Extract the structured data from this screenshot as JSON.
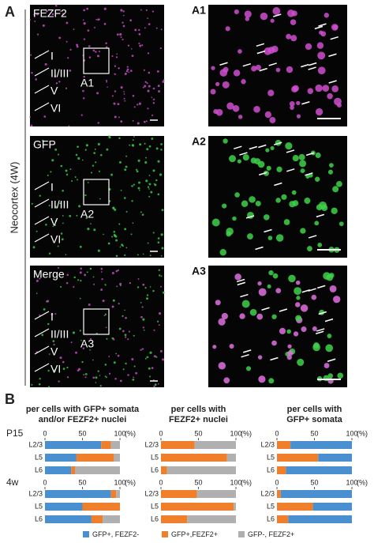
{
  "panels": {
    "A": {
      "label": "A",
      "side_label": "Neocortex (4W)",
      "images": [
        {
          "label": "FEZF2",
          "inset": "A1"
        },
        {
          "label": "GFP",
          "inset": "A2"
        },
        {
          "label": "Merge",
          "inset": "A3"
        }
      ],
      "layers": [
        "I",
        "II/III",
        "V",
        "VI"
      ]
    },
    "B": {
      "label": "B",
      "groups": [
        "P15",
        "4w"
      ]
    }
  },
  "chart_data": [
    {
      "type": "bar",
      "title_lines": [
        "per cells with GFP+ somata",
        "and/or FEZF2+ nuclei"
      ],
      "categories": [
        "L2/3",
        "L5",
        "L6",
        "L2/3",
        "L5",
        "L6"
      ],
      "xlim": [
        0,
        100
      ],
      "xticks": [
        0,
        50,
        100
      ],
      "unit": "(%)",
      "series": [
        {
          "name": "GFP+, FEZF2-",
          "color": "#4a90d0",
          "values": [
            75,
            42,
            35,
            88,
            50,
            62
          ]
        },
        {
          "name": "GFP+,FEZF2+",
          "color": "#f07f2c",
          "values": [
            13,
            50,
            5,
            7,
            50,
            15
          ]
        },
        {
          "name": "GFP-, FEZF2+",
          "color": "#b0b0b0",
          "values": [
            12,
            8,
            60,
            5,
            0,
            23
          ]
        }
      ]
    },
    {
      "type": "bar",
      "title_lines": [
        "per cells with",
        "FEZF2+ nuclei"
      ],
      "categories": [
        "L2/3",
        "L5",
        "L6",
        "L2/3",
        "L5",
        "L6"
      ],
      "xlim": [
        0,
        100
      ],
      "xticks": [
        0,
        50,
        100
      ],
      "unit": "(%)",
      "series": [
        {
          "color": "#f07f2c",
          "values": [
            45,
            88,
            8,
            48,
            97,
            35
          ]
        },
        {
          "color": "#b0b0b0",
          "values": [
            55,
            12,
            92,
            52,
            3,
            65
          ]
        }
      ]
    },
    {
      "type": "bar",
      "title_lines": [
        "per cells with",
        "GFP+ somata"
      ],
      "categories": [
        "L2/3",
        "L5",
        "L6",
        "L2/3",
        "L5",
        "L6"
      ],
      "xlim": [
        0,
        100
      ],
      "xticks": [
        0,
        50,
        100
      ],
      "unit": "(%)",
      "series": [
        {
          "color": "#f07f2c",
          "values": [
            18,
            55,
            12,
            5,
            48,
            15
          ]
        },
        {
          "color": "#4a90d0",
          "values": [
            82,
            45,
            88,
            95,
            52,
            85
          ]
        }
      ]
    }
  ]
}
